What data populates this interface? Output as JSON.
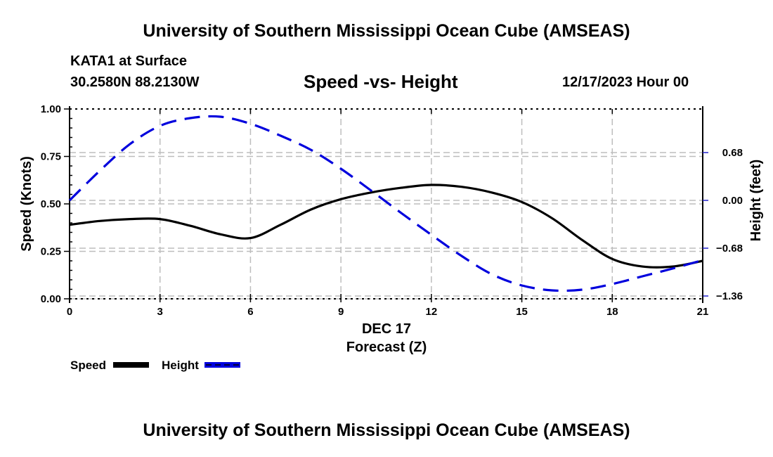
{
  "header": {
    "main_title": "University of Southern Mississippi Ocean Cube (AMSEAS)",
    "station": "KATA1 at Surface",
    "coordinates": "30.2580N  88.2130W",
    "chart_title": "Speed -vs- Height",
    "date": "12/17/2023 Hour 00"
  },
  "footer": {
    "title": "University of Southern Mississippi Ocean Cube (AMSEAS)"
  },
  "chart_data": {
    "type": "line",
    "title": "Speed -vs- Height",
    "xlabel": "Forecast (Z)",
    "xlabel_date": "DEC 17",
    "ylabel": "Speed (Knots)",
    "y2label": "Height (feet)",
    "xlim": [
      0,
      21
    ],
    "ylim": [
      0,
      1.0
    ],
    "y2lim": [
      -1.4,
      1.25
    ],
    "x_ticks": [
      0,
      3,
      6,
      9,
      12,
      15,
      18,
      21
    ],
    "x_tick_labels": [
      "0",
      "3",
      "6",
      "9",
      "12",
      "15",
      "18",
      "21"
    ],
    "y_ticks": [
      0.0,
      0.25,
      0.5,
      0.75,
      1.0
    ],
    "y_tick_labels": [
      "0.00",
      "0.25",
      "0.50",
      "0.75",
      "1.00"
    ],
    "y2_ticks": [
      0.68,
      0.0,
      -0.68,
      -1.36
    ],
    "y2_tick_labels": [
      "0.68",
      "0.00",
      "−0.68",
      "−1.36"
    ],
    "grid": true,
    "legend_position": "bottom-left",
    "x": [
      0,
      1,
      2,
      3,
      4,
      5,
      6,
      7,
      8,
      9,
      10,
      11,
      12,
      13,
      14,
      15,
      16,
      17,
      18,
      19,
      20,
      21
    ],
    "series": [
      {
        "name": "Speed",
        "axis": "left",
        "color": "#000000",
        "style": "solid",
        "values": [
          0.39,
          0.41,
          0.42,
          0.42,
          0.385,
          0.34,
          0.32,
          0.39,
          0.47,
          0.525,
          0.56,
          0.585,
          0.6,
          0.59,
          0.56,
          0.51,
          0.425,
          0.31,
          0.21,
          0.17,
          0.17,
          0.2
        ]
      },
      {
        "name": "Height",
        "axis": "right",
        "color": "#0000dd",
        "style": "dashed",
        "values": [
          0.0,
          0.42,
          0.8,
          1.06,
          1.17,
          1.19,
          1.09,
          0.92,
          0.72,
          0.45,
          0.14,
          -0.18,
          -0.49,
          -0.79,
          -1.05,
          -1.21,
          -1.28,
          -1.27,
          -1.19,
          -1.08,
          -0.97,
          -0.85
        ]
      }
    ]
  }
}
